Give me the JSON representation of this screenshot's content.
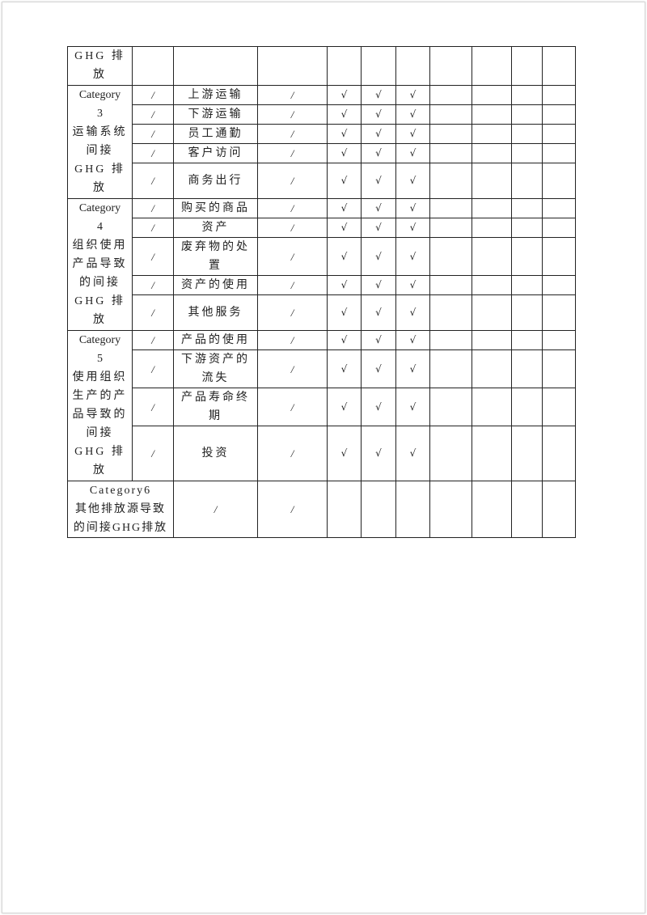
{
  "table": {
    "groups": [
      {
        "label_lines": [
          "GHG 排",
          "放"
        ],
        "rows": [
          {
            "c2": "",
            "item": "",
            "c4": "",
            "checks": [
              "",
              "",
              ""
            ]
          }
        ]
      },
      {
        "label_lines": [
          "Category",
          "3",
          "运输系统",
          "间接",
          "GHG 排",
          "放"
        ],
        "rows": [
          {
            "c2": "/",
            "item": "上游运输",
            "c4": "/",
            "checks": [
              "√",
              "√",
              "√"
            ]
          },
          {
            "c2": "/",
            "item": "下游运输",
            "c4": "/",
            "checks": [
              "√",
              "√",
              "√"
            ]
          },
          {
            "c2": "/",
            "item": "员工通勤",
            "c4": "/",
            "checks": [
              "√",
              "√",
              "√"
            ]
          },
          {
            "c2": "/",
            "item": "客户访问",
            "c4": "/",
            "checks": [
              "√",
              "√",
              "√"
            ]
          },
          {
            "c2": "/",
            "item": "商务出行",
            "c4": "/",
            "checks": [
              "√",
              "√",
              "√"
            ]
          }
        ]
      },
      {
        "label_lines": [
          "Category",
          "4",
          "组织使用",
          "产品导致",
          "的间接",
          "GHG 排",
          "放"
        ],
        "rows": [
          {
            "c2": "/",
            "item": "购买的商品",
            "c4": "/",
            "checks": [
              "√",
              "√",
              "√"
            ]
          },
          {
            "c2": "/",
            "item": "资产",
            "c4": "/",
            "checks": [
              "√",
              "√",
              "√"
            ]
          },
          {
            "c2": "/",
            "item": "废弃物的处置",
            "c4": "/",
            "checks": [
              "√",
              "√",
              "√"
            ]
          },
          {
            "c2": "/",
            "item": "资产的使用",
            "c4": "/",
            "checks": [
              "√",
              "√",
              "√"
            ]
          },
          {
            "c2": "/",
            "item": "其他服务",
            "c4": "/",
            "checks": [
              "√",
              "√",
              "√"
            ]
          }
        ]
      },
      {
        "label_lines": [
          "Category",
          "5",
          "使用组织",
          "生产的产",
          "品导致的",
          "间接",
          "GHG 排",
          "放"
        ],
        "rows": [
          {
            "c2": "/",
            "item": "产品的使用",
            "c4": "/",
            "checks": [
              "√",
              "√",
              "√"
            ]
          },
          {
            "c2": "/",
            "item": "下游资产的流失",
            "c4": "/",
            "checks": [
              "√",
              "√",
              "√"
            ]
          },
          {
            "c2": "/",
            "item": "产品寿命终期",
            "c4": "/",
            "checks": [
              "√",
              "√",
              "√"
            ]
          },
          {
            "c2": "/",
            "item": "投资",
            "c4": "/",
            "checks": [
              "√",
              "√",
              "√"
            ]
          }
        ]
      }
    ],
    "last_row": {
      "label_lines": [
        "Category6",
        "其他排放源导致",
        "的间接GHG排放"
      ],
      "c3": "/",
      "c4": "/"
    }
  }
}
